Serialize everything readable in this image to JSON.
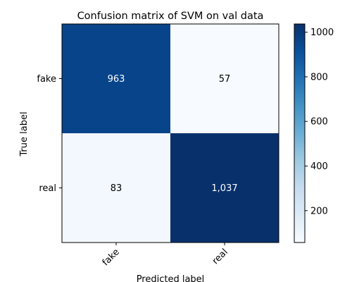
{
  "chart_data": {
    "type": "heatmap",
    "title": "Confusion matrix of SVM on val data",
    "xlabel": "Predicted label",
    "ylabel": "True label",
    "x_categories": [
      "fake",
      "real"
    ],
    "y_categories": [
      "fake",
      "real"
    ],
    "values": [
      [
        963,
        57
      ],
      [
        83,
        1037
      ]
    ],
    "value_labels": [
      [
        "963",
        "57"
      ],
      [
        "83",
        "1,037"
      ]
    ],
    "colormap": "Blues",
    "colorbar": {
      "min": 57,
      "max": 1037,
      "ticks": [
        200,
        400,
        600,
        800,
        1000
      ],
      "tick_labels": [
        "200",
        "400",
        "600",
        "800",
        "1000"
      ]
    },
    "text_colors": {
      "light": "#ffffff",
      "dark": "#000000"
    },
    "grid": false
  }
}
